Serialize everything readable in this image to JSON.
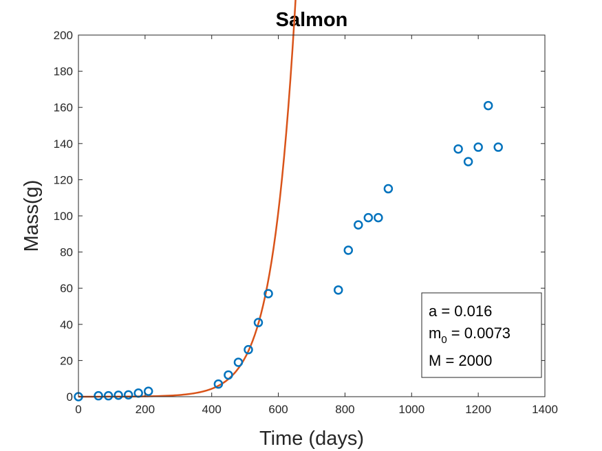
{
  "chart_data": {
    "type": "scatter",
    "title": "Salmon",
    "xlabel": "Time (days)",
    "ylabel": "Mass(g)",
    "xlim": [
      0,
      1400
    ],
    "ylim": [
      0,
      200
    ],
    "xticks": [
      "0",
      "200",
      "400",
      "600",
      "800",
      "1000",
      "1200",
      "1400"
    ],
    "yticks": [
      "0",
      "20",
      "40",
      "60",
      "80",
      "100",
      "120",
      "140",
      "160",
      "180",
      "200"
    ],
    "grid": false,
    "series": [
      {
        "kind": "scatter",
        "color": "#0072BD",
        "marker": "circle-open",
        "x": [
          0,
          60,
          90,
          120,
          150,
          180,
          210,
          420,
          450,
          480,
          510,
          540,
          570,
          780,
          810,
          840,
          870,
          900,
          930,
          1140,
          1170,
          1200,
          1230,
          1260
        ],
        "y": [
          0,
          0.5,
          0.5,
          0.8,
          1,
          2,
          3,
          7,
          12,
          19,
          26,
          41,
          57,
          59,
          81,
          95,
          99,
          99,
          115,
          137,
          130,
          138,
          161,
          138
        ]
      },
      {
        "kind": "line",
        "color": "#D95319",
        "model": "logistic-growth",
        "x_range": [
          0,
          1260
        ]
      }
    ],
    "annotation": {
      "position": "bottom-right",
      "lines": [
        {
          "text": "a = 0.016"
        },
        {
          "text": "m",
          "sub": "0",
          "rest": " = 0.0073"
        },
        {
          "text": "M = 2000"
        }
      ],
      "params": {
        "a": 0.016,
        "m0": 0.0073,
        "M": 2000
      }
    }
  }
}
